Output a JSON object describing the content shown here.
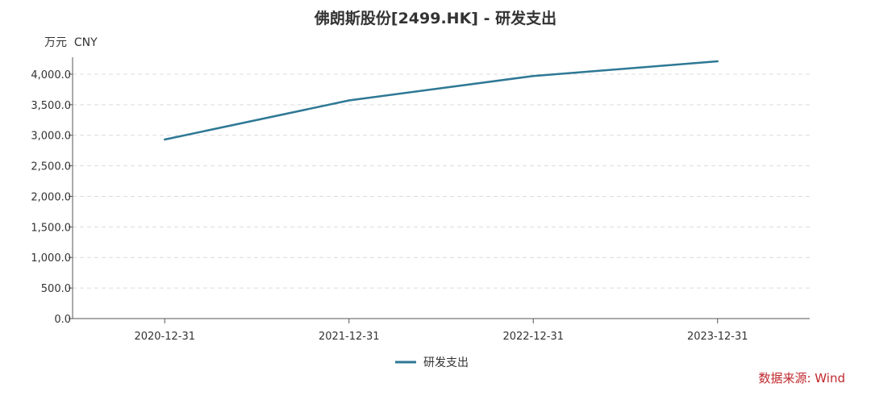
{
  "chart_data": {
    "type": "line",
    "title": "佛朗斯股份[2499.HK] - 研发支出",
    "ylabel": "万元  CNY",
    "xlabel": "",
    "categories": [
      "2020-12-31",
      "2021-12-31",
      "2022-12-31",
      "2023-12-31"
    ],
    "series": [
      {
        "name": "研发支出",
        "values": [
          2930,
          3570,
          3970,
          4210
        ],
        "color": "#2e7895"
      }
    ],
    "ylim": [
      0,
      4250
    ],
    "yticks": [
      0,
      500,
      1000,
      1500,
      2000,
      2500,
      3000,
      3500,
      4000
    ],
    "ytick_labels": [
      "0.0",
      "500.0",
      "1,000.0",
      "1,500.0",
      "2,000.0",
      "2,500.0",
      "3,000.0",
      "3,500.0",
      "4,000.0"
    ],
    "grid": true,
    "legend_position": "bottom-center"
  },
  "source": "数据来源: Wind"
}
